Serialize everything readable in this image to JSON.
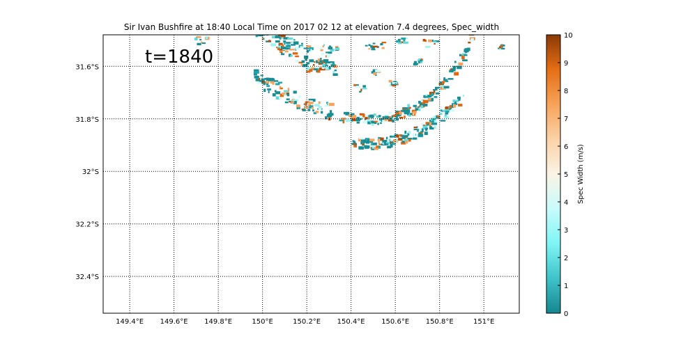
{
  "chart_data": {
    "type": "heatmap",
    "title": "Sir Ivan Bushfire at 18:40 Local Time on 2017 02 12 at elevation 7.4 degrees, Spec_width",
    "annotation": "t=1840",
    "x_ticks": [
      {
        "value": 149.4,
        "label": "149.4°E"
      },
      {
        "value": 149.6,
        "label": "149.6°E"
      },
      {
        "value": 149.8,
        "label": "149.8°E"
      },
      {
        "value": 150.0,
        "label": "150°E"
      },
      {
        "value": 150.2,
        "label": "150.2°E"
      },
      {
        "value": 150.4,
        "label": "150.4°E"
      },
      {
        "value": 150.6,
        "label": "150.6°E"
      },
      {
        "value": 150.8,
        "label": "150.8°E"
      },
      {
        "value": 151.0,
        "label": "151°E"
      }
    ],
    "y_ticks": [
      {
        "value": -31.6,
        "label": "31.6°S"
      },
      {
        "value": -31.8,
        "label": "31.8°S"
      },
      {
        "value": -32.0,
        "label": "32°S"
      },
      {
        "value": -32.2,
        "label": "32.2°S"
      },
      {
        "value": -32.4,
        "label": "32.4°S"
      }
    ],
    "xlim": [
      149.28,
      151.16
    ],
    "ylim": [
      -32.54,
      -31.48
    ],
    "grid": true,
    "colorbar": {
      "label": "Spec Width (m/s)",
      "range": [
        0,
        10
      ],
      "ticks": [
        "0",
        "1",
        "2",
        "3",
        "4",
        "5",
        "6",
        "7",
        "8",
        "9",
        "10"
      ],
      "colors": [
        "#15868f",
        "#3fc3c7",
        "#7ff5f5",
        "#c8fbfb",
        "#fbf3e5",
        "#fbd2a6",
        "#f7a35a",
        "#e46e15",
        "#8a3a05"
      ]
    },
    "arcs": [
      {
        "center": [
          150.58,
          -30.55
        ],
        "radius": 0.86,
        "lon_from": 149.65,
        "lon_to": 150.05,
        "band": 0.05
      },
      {
        "center": [
          150.58,
          -30.55
        ],
        "radius": 1.08,
        "lon_from": 149.78,
        "lon_to": 150.33,
        "band": 0.08
      },
      {
        "center": [
          150.58,
          -30.55
        ],
        "radius": 1.25,
        "lon_from": 149.95,
        "lon_to": 150.3,
        "band": 0.06
      },
      {
        "center": [
          150.47,
          -31.3
        ],
        "radius": 0.5,
        "lon_from": 150.35,
        "lon_to": 151.0,
        "band": 0.04
      },
      {
        "center": [
          150.47,
          -31.3
        ],
        "radius": 0.59,
        "lon_from": 150.4,
        "lon_to": 150.9,
        "band": 0.04
      }
    ],
    "patches": [
      {
        "lon": 149.72,
        "lat": -31.5,
        "w": 0.06,
        "h": 0.03
      },
      {
        "lon": 150.1,
        "lat": -31.52,
        "w": 0.08,
        "h": 0.03
      },
      {
        "lon": 150.3,
        "lat": -31.53,
        "w": 0.08,
        "h": 0.03
      },
      {
        "lon": 150.5,
        "lat": -31.52,
        "w": 0.08,
        "h": 0.03
      },
      {
        "lon": 150.75,
        "lat": -31.51,
        "w": 0.06,
        "h": 0.03
      },
      {
        "lon": 151.07,
        "lat": -31.52,
        "w": 0.02,
        "h": 0.03
      },
      {
        "lon": 150.43,
        "lat": -31.68,
        "w": 0.05,
        "h": 0.03
      },
      {
        "lon": 150.58,
        "lat": -31.66,
        "w": 0.05,
        "h": 0.02
      },
      {
        "lon": 150.5,
        "lat": -31.62,
        "w": 0.04,
        "h": 0.02
      },
      {
        "lon": 150.62,
        "lat": -31.5,
        "w": 0.04,
        "h": 0.02
      },
      {
        "lon": 150.22,
        "lat": -31.61,
        "w": 0.05,
        "h": 0.02
      },
      {
        "lon": 150.7,
        "lat": -31.58,
        "w": 0.04,
        "h": 0.02
      }
    ]
  }
}
